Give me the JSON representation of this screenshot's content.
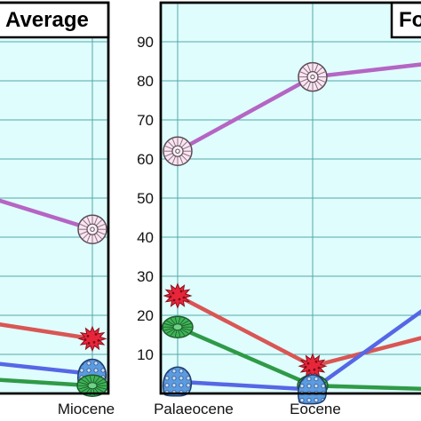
{
  "chart_data": [
    {
      "type": "line",
      "title": "Average",
      "x": [
        "Miocene"
      ],
      "ylim": [
        0,
        100
      ],
      "grid": true,
      "colors": {
        "plot_bg": "#dffdfd",
        "grid": "#55a6a6",
        "frame": "#000000"
      },
      "series": [
        {
          "color": "#b565c4",
          "marker": "nautiloid-shell-icon",
          "values": [
            42
          ]
        },
        {
          "color": "#d95654",
          "marker": "red-coral-icon",
          "values": [
            14
          ]
        },
        {
          "color": "#5667e6",
          "marker": "blue-sponge-icon",
          "values": [
            5
          ]
        },
        {
          "color": "#2f9a47",
          "marker": "green-coral-icon",
          "values": [
            2
          ]
        }
      ]
    },
    {
      "type": "line",
      "title": "Fo",
      "x": [
        "Palaeocene",
        "Eocene",
        ""
      ],
      "ylim": [
        0,
        100
      ],
      "yticks": [
        10,
        20,
        30,
        40,
        50,
        60,
        70,
        80,
        90
      ],
      "grid": true,
      "colors": {
        "plot_bg": "#dffdfd",
        "grid": "#55a6a6",
        "frame": "#000000"
      },
      "series": [
        {
          "color": "#b565c4",
          "marker": "nautiloid-shell-icon",
          "values": [
            62,
            81,
            85
          ]
        },
        {
          "color": "#d95654",
          "marker": "red-coral-icon",
          "values": [
            25,
            7,
            16
          ]
        },
        {
          "color": "#2f9a47",
          "marker": "green-coral-icon",
          "values": [
            17,
            2,
            1
          ]
        },
        {
          "color": "#5667e6",
          "marker": "blue-sponge-icon",
          "values": [
            3,
            1,
            26
          ]
        }
      ]
    }
  ]
}
